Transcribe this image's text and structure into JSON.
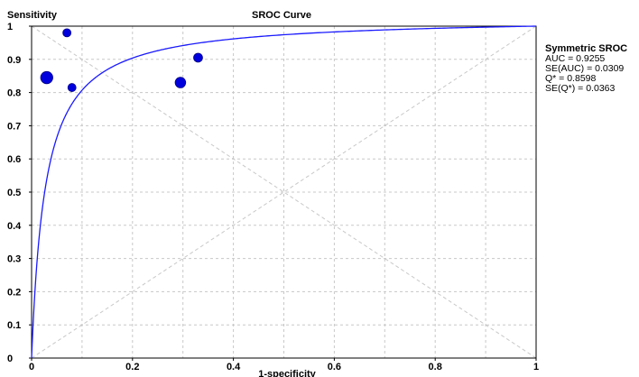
{
  "chart_data": {
    "type": "scatter",
    "title": "SROC Curve",
    "xlabel": "1-specificity",
    "ylabel": "Sensitivity",
    "xlim": [
      0,
      1
    ],
    "ylim": [
      0,
      1
    ],
    "xticks": [
      "0",
      "0.2",
      "0.4",
      "0.6",
      "0.8",
      "1"
    ],
    "yticks": [
      "0",
      "0.1",
      "0.2",
      "0.3",
      "0.4",
      "0.5",
      "0.6",
      "0.7",
      "0.8",
      "0.9",
      "1"
    ],
    "grid": true,
    "points": [
      {
        "x": 0.07,
        "y": 0.98,
        "weight": 1.0
      },
      {
        "x": 0.03,
        "y": 0.845,
        "weight": 1.5
      },
      {
        "x": 0.08,
        "y": 0.815,
        "weight": 1.0
      },
      {
        "x": 0.295,
        "y": 0.83,
        "weight": 1.3
      },
      {
        "x": 0.33,
        "y": 0.905,
        "weight": 1.1
      }
    ],
    "curve": {
      "name": "Symmetric SROC",
      "color": "#1a1aff"
    },
    "reference_lines": [
      "diagonal",
      "anti-diagonal"
    ],
    "point_color": "#0000dd",
    "legend_position": "right",
    "annotations": {
      "title": "Symmetric SROC",
      "lines": [
        "AUC = 0.9255",
        "SE(AUC) = 0.0309",
        "Q* = 0.8598",
        "SE(Q*) = 0.0363"
      ]
    }
  }
}
